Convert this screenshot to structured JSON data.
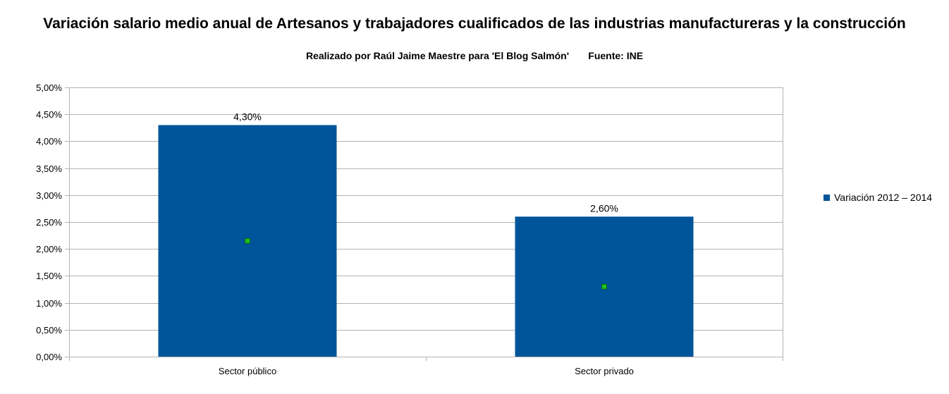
{
  "chart_data": {
    "type": "bar",
    "title": "Variación salario medio anual de Artesanos y trabajadores cualificados de las industrias manufactureras y la construcción",
    "subtitle": "Realizado por Raúl Jaime Maestre para 'El Blog Salmón'       Fuente: INE",
    "categories": [
      "Sector público",
      "Sector privado"
    ],
    "series": [
      {
        "name": "Variación 2012 – 2014",
        "values": [
          4.3,
          2.6
        ],
        "color": "#00549a"
      }
    ],
    "data_labels": [
      "4,30%",
      "2,60%"
    ],
    "marker_color": "#1ec01e",
    "ylim": [
      0,
      5
    ],
    "y_ticks": [
      0,
      0.5,
      1,
      1.5,
      2,
      2.5,
      3,
      3.5,
      4,
      4.5,
      5
    ],
    "y_tick_labels": [
      "0,00%",
      "0,50%",
      "1,00%",
      "1,50%",
      "2,00%",
      "2,50%",
      "3,00%",
      "3,50%",
      "4,00%",
      "4,50%",
      "5,00%"
    ],
    "grid": true,
    "legend_position": "right",
    "xlabel": "",
    "ylabel": ""
  }
}
